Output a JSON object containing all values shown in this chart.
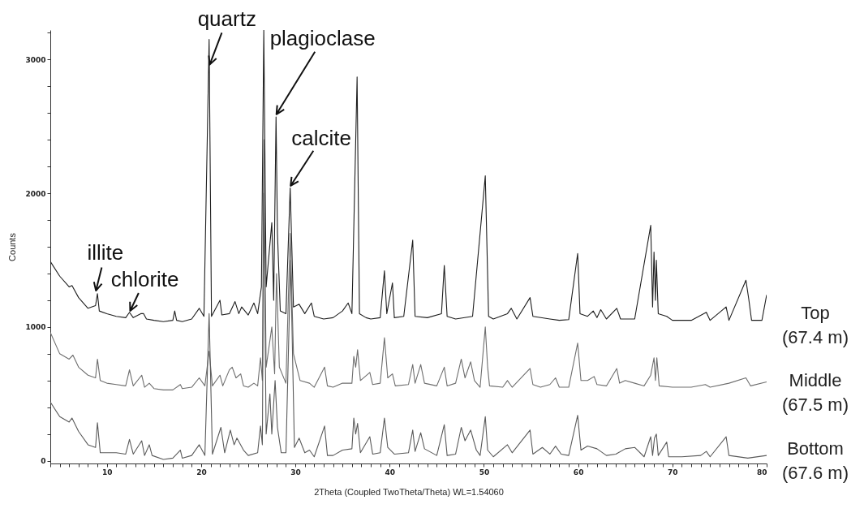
{
  "chart_data": {
    "type": "line",
    "xlabel": "2Theta (Coupled TwoTheta/Theta) WL=1.54060",
    "ylabel": "Counts",
    "xlim": [
      4,
      80
    ],
    "ylim": [
      -20,
      3220
    ],
    "xticks": [
      {
        "value": 4,
        "label": null
      },
      {
        "value": 5,
        "label": null
      },
      {
        "value": 6,
        "label": null
      },
      {
        "value": 7,
        "label": null
      },
      {
        "value": 8,
        "label": null
      },
      {
        "value": 9,
        "label": null
      },
      10,
      {
        "value": 11,
        "label": null
      },
      {
        "value": 12,
        "label": null
      },
      {
        "value": 13,
        "label": null
      },
      {
        "value": 14,
        "label": null
      },
      {
        "value": 15,
        "label": null
      },
      {
        "value": 16,
        "label": null
      },
      {
        "value": 17,
        "label": null
      },
      {
        "value": 18,
        "label": null
      },
      {
        "value": 19,
        "label": null
      },
      20,
      {
        "value": 21,
        "label": null
      },
      {
        "value": 22,
        "label": null
      },
      {
        "value": 23,
        "label": null
      },
      {
        "value": 24,
        "label": null
      },
      {
        "value": 25,
        "label": null
      },
      {
        "value": 26,
        "label": null
      },
      {
        "value": 27,
        "label": null
      },
      {
        "value": 28,
        "label": null
      },
      {
        "value": 29,
        "label": null
      },
      30,
      {
        "value": 31,
        "label": null
      },
      {
        "value": 32,
        "label": null
      },
      {
        "value": 33,
        "label": null
      },
      {
        "value": 34,
        "label": null
      },
      {
        "value": 35,
        "label": null
      },
      {
        "value": 36,
        "label": null
      },
      {
        "value": 37,
        "label": null
      },
      {
        "value": 38,
        "label": null
      },
      {
        "value": 39,
        "label": null
      },
      40,
      {
        "value": 41,
        "label": null
      },
      {
        "value": 42,
        "label": null
      },
      {
        "value": 43,
        "label": null
      },
      {
        "value": 44,
        "label": null
      },
      {
        "value": 45,
        "label": null
      },
      {
        "value": 46,
        "label": null
      },
      {
        "value": 47,
        "label": null
      },
      {
        "value": 48,
        "label": null
      },
      {
        "value": 49,
        "label": null
      },
      50,
      {
        "value": 51,
        "label": null
      },
      {
        "value": 52,
        "label": null
      },
      {
        "value": 53,
        "label": null
      },
      {
        "value": 54,
        "label": null
      },
      {
        "value": 55,
        "label": null
      },
      {
        "value": 56,
        "label": null
      },
      {
        "value": 57,
        "label": null
      },
      {
        "value": 58,
        "label": null
      },
      {
        "value": 59,
        "label": null
      },
      60,
      {
        "value": 61,
        "label": null
      },
      {
        "value": 62,
        "label": null
      },
      {
        "value": 63,
        "label": null
      },
      {
        "value": 64,
        "label": null
      },
      {
        "value": 65,
        "label": null
      },
      {
        "value": 66,
        "label": null
      },
      {
        "value": 67,
        "label": null
      },
      {
        "value": 68,
        "label": null
      },
      {
        "value": 69,
        "label": null
      },
      70,
      {
        "value": 71,
        "label": null
      },
      {
        "value": 72,
        "label": null
      },
      {
        "value": 73,
        "label": null
      },
      {
        "value": 74,
        "label": null
      },
      {
        "value": 75,
        "label": null
      },
      {
        "value": 76,
        "label": null
      },
      {
        "value": 77,
        "label": null
      },
      {
        "value": 78,
        "label": null
      },
      {
        "value": 79,
        "label": null
      },
      80
    ],
    "yticks": [
      0,
      {
        "value": 200,
        "label": null
      },
      {
        "value": 400,
        "label": null
      },
      {
        "value": 600,
        "label": null
      },
      {
        "value": 800,
        "label": null
      },
      1000,
      {
        "value": 1200,
        "label": null
      },
      {
        "value": 1400,
        "label": null
      },
      {
        "value": 1600,
        "label": null
      },
      {
        "value": 1800,
        "label": null
      },
      2000,
      {
        "value": 2200,
        "label": null
      },
      {
        "value": 2400,
        "label": null
      },
      {
        "value": 2600,
        "label": null
      },
      {
        "value": 2800,
        "label": null
      },
      3000,
      {
        "value": 3200,
        "label": null
      }
    ],
    "annotations": [
      {
        "text": "quartz",
        "x": 20.85,
        "y": 2950
      },
      {
        "text": "plagioclase",
        "x": 27.9,
        "y": 2580
      },
      {
        "text": "calcite",
        "x": 29.4,
        "y": 2045
      },
      {
        "text": "illite",
        "x": 8.8,
        "y": 1260
      },
      {
        "text": "chlorite",
        "x": 12.4,
        "y": 1110
      }
    ],
    "series": [
      {
        "name": "Top (67.4 m)",
        "color": "#1e1e1e",
        "x": [
          4,
          5,
          6,
          6.3,
          7,
          8,
          8.8,
          9,
          9.2,
          10,
          11,
          12,
          12.4,
          12.8,
          13.6,
          13.9,
          14.2,
          15,
          16,
          17,
          17.2,
          17.4,
          18,
          19,
          19.8,
          20.3,
          20.85,
          21.1,
          22,
          22.2,
          23,
          23.6,
          24,
          24.3,
          25,
          25.6,
          26,
          26.4,
          26.65,
          26.9,
          27.5,
          27.7,
          27.95,
          28.1,
          28.4,
          29,
          29.45,
          29.8,
          30.4,
          31,
          31.7,
          32,
          33,
          34,
          35,
          35.6,
          36,
          36.55,
          36.8,
          37.5,
          38,
          39,
          39.45,
          39.7,
          40.3,
          40.5,
          41.5,
          42.45,
          42.7,
          44,
          45.5,
          45.8,
          46.1,
          47,
          48.8,
          50.15,
          50.5,
          51,
          52.5,
          52.9,
          53.5,
          54.9,
          55.2,
          57,
          58,
          59,
          59.95,
          60.2,
          61,
          61.6,
          62,
          62.4,
          63,
          64.1,
          64.5,
          66,
          67.7,
          67.9,
          68.05,
          68.2,
          68.3,
          68.5,
          69.4,
          70,
          72,
          73.6,
          74,
          75.7,
          76,
          77.8,
          78.1,
          78.4,
          79.5,
          80
        ],
        "values": [
          1490,
          1380,
          1300,
          1310,
          1220,
          1140,
          1160,
          1250,
          1120,
          1100,
          1080,
          1070,
          1110,
          1070,
          1100,
          1100,
          1060,
          1050,
          1040,
          1050,
          1120,
          1050,
          1040,
          1060,
          1140,
          1080,
          3150,
          1080,
          1200,
          1090,
          1100,
          1190,
          1100,
          1150,
          1090,
          1180,
          1100,
          1300,
          3220,
          1300,
          1780,
          1200,
          2570,
          1700,
          1120,
          1100,
          2040,
          1150,
          1170,
          1100,
          1180,
          1080,
          1060,
          1070,
          1120,
          1180,
          1100,
          2870,
          1100,
          1070,
          1060,
          1070,
          1420,
          1100,
          1330,
          1070,
          1080,
          1650,
          1080,
          1070,
          1100,
          1460,
          1080,
          1060,
          1080,
          2130,
          1080,
          1060,
          1100,
          1140,
          1060,
          1220,
          1080,
          1060,
          1050,
          1055,
          1550,
          1100,
          1080,
          1120,
          1070,
          1130,
          1060,
          1140,
          1060,
          1060,
          1760,
          1150,
          1560,
          1200,
          1500,
          1100,
          1080,
          1050,
          1050,
          1110,
          1050,
          1150,
          1050,
          1350,
          1210,
          1050,
          1050,
          1240
        ]
      },
      {
        "name": "Middle (67.5 m)",
        "color": "#6e6e6e",
        "x": [
          4,
          5,
          6,
          6.4,
          7,
          8,
          8.8,
          9,
          9.3,
          10,
          11,
          12,
          12.4,
          12.8,
          13.7,
          14,
          14.5,
          15,
          16,
          17,
          17.8,
          18,
          19,
          19.8,
          20.4,
          20.85,
          21.2,
          22,
          22.3,
          23,
          23.3,
          23.7,
          24.2,
          24.5,
          25,
          25.6,
          26,
          26.3,
          26.5,
          26.65,
          26.9,
          27.5,
          27.8,
          28,
          28.3,
          29,
          29.45,
          29.8,
          30.5,
          31.5,
          32,
          33.1,
          33.4,
          34,
          35,
          36,
          36.2,
          36.4,
          36.6,
          36.9,
          37.9,
          38.2,
          39,
          39.45,
          39.8,
          40.3,
          40.6,
          42,
          42.45,
          42.7,
          43.3,
          43.7,
          45,
          45.8,
          46.1,
          47,
          47.6,
          48,
          48.6,
          49,
          49.6,
          50.15,
          50.4,
          50.6,
          52,
          52.5,
          53,
          54.9,
          55.2,
          56,
          57,
          57.6,
          58,
          59,
          59.95,
          60.3,
          61,
          61.7,
          62,
          63,
          64.1,
          64.4,
          65,
          66,
          67,
          67.7,
          68.05,
          68.2,
          68.35,
          68.6,
          70,
          72,
          73.5,
          74,
          76,
          77.8,
          78.3,
          80
        ],
        "values": [
          960,
          800,
          760,
          790,
          700,
          640,
          620,
          760,
          600,
          580,
          570,
          560,
          680,
          560,
          640,
          550,
          580,
          540,
          530,
          530,
          570,
          540,
          550,
          620,
          560,
          820,
          560,
          640,
          560,
          680,
          700,
          620,
          650,
          560,
          550,
          580,
          560,
          770,
          600,
          2400,
          700,
          1000,
          650,
          1400,
          700,
          580,
          1700,
          800,
          600,
          580,
          550,
          700,
          560,
          550,
          580,
          580,
          780,
          700,
          830,
          600,
          660,
          570,
          580,
          920,
          620,
          650,
          560,
          570,
          720,
          580,
          720,
          580,
          560,
          700,
          560,
          580,
          760,
          620,
          740,
          600,
          550,
          1000,
          700,
          560,
          550,
          600,
          550,
          690,
          570,
          550,
          570,
          620,
          550,
          550,
          880,
          600,
          600,
          630,
          570,
          560,
          690,
          580,
          600,
          580,
          560,
          640,
          770,
          600,
          770,
          560,
          550,
          550,
          570,
          550,
          580,
          620,
          560,
          590
        ]
      },
      {
        "name": "Bottom (67.6 m)",
        "color": "#5a5a5a",
        "x": [
          4,
          5,
          6,
          6.3,
          7,
          8,
          8.8,
          9,
          9.3,
          10,
          11,
          12,
          12.4,
          12.8,
          13.7,
          14,
          14.5,
          14.8,
          16,
          17,
          17.8,
          18,
          19,
          19.8,
          20.4,
          20.85,
          21.2,
          22.1,
          22.5,
          23.1,
          23.5,
          23.8,
          24.5,
          25,
          26,
          26.3,
          26.5,
          26.65,
          26.9,
          27.3,
          27.5,
          27.85,
          28.1,
          28.5,
          29,
          29.5,
          29.9,
          30.4,
          31,
          31.5,
          32,
          33.1,
          33.4,
          34,
          35,
          36,
          36.2,
          36.4,
          36.6,
          36.9,
          37.9,
          38.2,
          39,
          39.45,
          39.8,
          40.5,
          42,
          42.45,
          42.7,
          43.3,
          43.7,
          45,
          45.8,
          46.1,
          47,
          47.6,
          48,
          48.6,
          49.2,
          49.6,
          50.15,
          50.4,
          51,
          52.5,
          53,
          54.9,
          55.2,
          56.2,
          57,
          57.6,
          58.2,
          59,
          59.95,
          60.3,
          61,
          62,
          63,
          64,
          65,
          66,
          67,
          67.7,
          67.9,
          68.1,
          68.3,
          68.5,
          69.4,
          69.6,
          71,
          73,
          73.6,
          74,
          75.7,
          76,
          78,
          80
        ],
        "values": [
          440,
          330,
          290,
          320,
          220,
          120,
          100,
          285,
          60,
          60,
          60,
          50,
          160,
          50,
          150,
          40,
          120,
          40,
          10,
          20,
          80,
          20,
          40,
          120,
          40,
          1100,
          50,
          250,
          60,
          230,
          120,
          170,
          80,
          40,
          60,
          260,
          120,
          2000,
          200,
          500,
          200,
          600,
          250,
          60,
          60,
          1500,
          100,
          170,
          60,
          80,
          30,
          260,
          40,
          40,
          80,
          90,
          320,
          200,
          280,
          60,
          180,
          50,
          60,
          320,
          100,
          50,
          60,
          230,
          70,
          210,
          90,
          40,
          270,
          40,
          50,
          250,
          150,
          230,
          80,
          40,
          330,
          80,
          30,
          120,
          60,
          230,
          50,
          100,
          50,
          110,
          50,
          40,
          340,
          80,
          110,
          90,
          40,
          50,
          90,
          100,
          30,
          180,
          40,
          170,
          200,
          40,
          140,
          30,
          30,
          40,
          70,
          30,
          180,
          40,
          20,
          40
        ]
      }
    ]
  }
}
